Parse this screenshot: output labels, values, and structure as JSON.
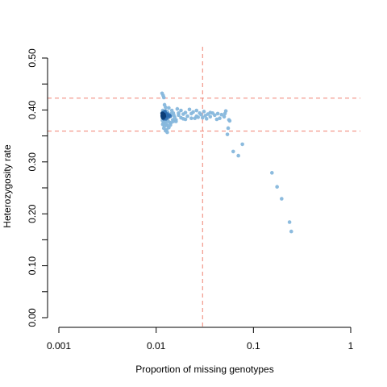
{
  "chart_data": {
    "type": "scatter",
    "xlabel": "Proportion of missing genotypes",
    "ylabel": "Heterozygosity rate",
    "x_scale": "log",
    "xlim": [
      0.001,
      1
    ],
    "ylim": [
      0,
      0.5
    ],
    "x_ticks": [
      0.001,
      0.01,
      0.1,
      1
    ],
    "x_tick_labels": [
      "0.001",
      "0.01",
      "0.1",
      "1"
    ],
    "y_ticks": [
      0,
      0.1,
      0.2,
      0.3,
      0.4,
      0.5
    ],
    "y_tick_labels": [
      "0.00",
      "0.10",
      "0.20",
      "0.30",
      "0.40",
      "0.50"
    ],
    "y_minor_ticks": [
      0.05,
      0.15,
      0.25,
      0.35,
      0.45
    ],
    "grid": false,
    "colors": {
      "point_light": "#86b7dc",
      "point_dense": "#2a6cb0",
      "point_core": "#0b3d78",
      "threshold_line": "#f08070",
      "axis": "#000000"
    },
    "thresholds": {
      "vertical_x": 0.03,
      "horizontal_y": [
        0.4227,
        0.3593
      ],
      "style": "dashed"
    },
    "points": [
      [
        0.0115,
        0.432
      ],
      [
        0.0118,
        0.428
      ],
      [
        0.012,
        0.424
      ],
      [
        0.0122,
        0.41
      ],
      [
        0.0125,
        0.405
      ],
      [
        0.012,
        0.365
      ],
      [
        0.0125,
        0.36
      ],
      [
        0.013,
        0.357
      ],
      [
        0.0128,
        0.362
      ],
      [
        0.0122,
        0.369
      ],
      [
        0.013,
        0.37
      ],
      [
        0.0135,
        0.366
      ],
      [
        0.014,
        0.371
      ],
      [
        0.0118,
        0.374
      ],
      [
        0.055,
        0.365
      ],
      [
        0.054,
        0.353
      ],
      [
        0.062,
        0.32
      ],
      [
        0.07,
        0.312
      ],
      [
        0.077,
        0.334
      ],
      [
        0.155,
        0.279
      ],
      [
        0.175,
        0.252
      ],
      [
        0.195,
        0.229
      ],
      [
        0.235,
        0.184
      ],
      [
        0.245,
        0.166
      ],
      [
        0.045,
        0.384
      ],
      [
        0.05,
        0.387
      ],
      [
        0.056,
        0.381
      ],
      [
        0.052,
        0.398
      ],
      [
        0.057,
        0.379
      ],
      [
        0.04,
        0.39
      ],
      [
        0.042,
        0.382
      ],
      [
        0.038,
        0.394
      ],
      [
        0.036,
        0.387
      ],
      [
        0.034,
        0.392
      ],
      [
        0.031,
        0.397
      ],
      [
        0.029,
        0.391
      ],
      [
        0.027,
        0.386
      ],
      [
        0.026,
        0.399
      ],
      [
        0.025,
        0.384
      ],
      [
        0.023,
        0.393
      ],
      [
        0.022,
        0.401
      ],
      [
        0.021,
        0.388
      ],
      [
        0.02,
        0.395
      ],
      [
        0.019,
        0.383
      ],
      [
        0.018,
        0.399
      ],
      [
        0.017,
        0.39
      ],
      [
        0.016,
        0.378
      ],
      [
        0.0165,
        0.402
      ],
      [
        0.0155,
        0.386
      ],
      [
        0.015,
        0.394
      ],
      [
        0.0148,
        0.381
      ],
      [
        0.0145,
        0.399
      ],
      [
        0.014,
        0.388
      ],
      [
        0.0138,
        0.376
      ],
      [
        0.0135,
        0.404
      ],
      [
        0.013,
        0.392
      ],
      [
        0.0128,
        0.383
      ],
      [
        0.0126,
        0.398
      ],
      [
        0.0124,
        0.378
      ],
      [
        0.0122,
        0.39
      ],
      [
        0.012,
        0.395
      ],
      [
        0.0119,
        0.385
      ],
      [
        0.0118,
        0.392
      ],
      [
        0.0117,
        0.399
      ],
      [
        0.0116,
        0.38
      ],
      [
        0.0116,
        0.388
      ],
      [
        0.0115,
        0.394
      ],
      [
        0.0117,
        0.372
      ],
      [
        0.0121,
        0.376
      ],
      [
        0.0127,
        0.373
      ],
      [
        0.0132,
        0.379
      ],
      [
        0.0142,
        0.375
      ],
      [
        0.015,
        0.378
      ],
      [
        0.016,
        0.381
      ],
      [
        0.018,
        0.385
      ],
      [
        0.02,
        0.382
      ],
      [
        0.023,
        0.384
      ],
      [
        0.026,
        0.388
      ],
      [
        0.03,
        0.385
      ],
      [
        0.033,
        0.383
      ],
      [
        0.036,
        0.395
      ],
      [
        0.043,
        0.393
      ],
      [
        0.047,
        0.391
      ],
      [
        0.051,
        0.393
      ],
      [
        0.024,
        0.396
      ],
      [
        0.028,
        0.394
      ],
      [
        0.032,
        0.389
      ],
      [
        0.019,
        0.392
      ],
      [
        0.017,
        0.394
      ],
      [
        0.0152,
        0.39
      ],
      [
        0.0143,
        0.393
      ],
      [
        0.0136,
        0.387
      ],
      [
        0.0131,
        0.396
      ],
      [
        0.0127,
        0.391
      ]
    ],
    "dense_points": [
      [
        0.0116,
        0.386
      ],
      [
        0.0117,
        0.39
      ],
      [
        0.0118,
        0.387
      ],
      [
        0.0119,
        0.393
      ],
      [
        0.012,
        0.389
      ],
      [
        0.0121,
        0.386
      ],
      [
        0.0122,
        0.392
      ],
      [
        0.0123,
        0.388
      ],
      [
        0.0124,
        0.394
      ],
      [
        0.0125,
        0.387
      ],
      [
        0.0127,
        0.391
      ],
      [
        0.0129,
        0.389
      ],
      [
        0.0131,
        0.392
      ],
      [
        0.0133,
        0.386
      ],
      [
        0.0136,
        0.39
      ],
      [
        0.0139,
        0.388
      ],
      [
        0.0118,
        0.395
      ],
      [
        0.012,
        0.383
      ],
      [
        0.0123,
        0.397
      ],
      [
        0.0126,
        0.383
      ]
    ],
    "core_points": [
      [
        0.0116,
        0.389
      ],
      [
        0.0117,
        0.392
      ],
      [
        0.0118,
        0.388
      ],
      [
        0.0119,
        0.39
      ],
      [
        0.012,
        0.391
      ],
      [
        0.0118,
        0.385
      ],
      [
        0.0116,
        0.393
      ],
      [
        0.0121,
        0.388
      ]
    ]
  }
}
